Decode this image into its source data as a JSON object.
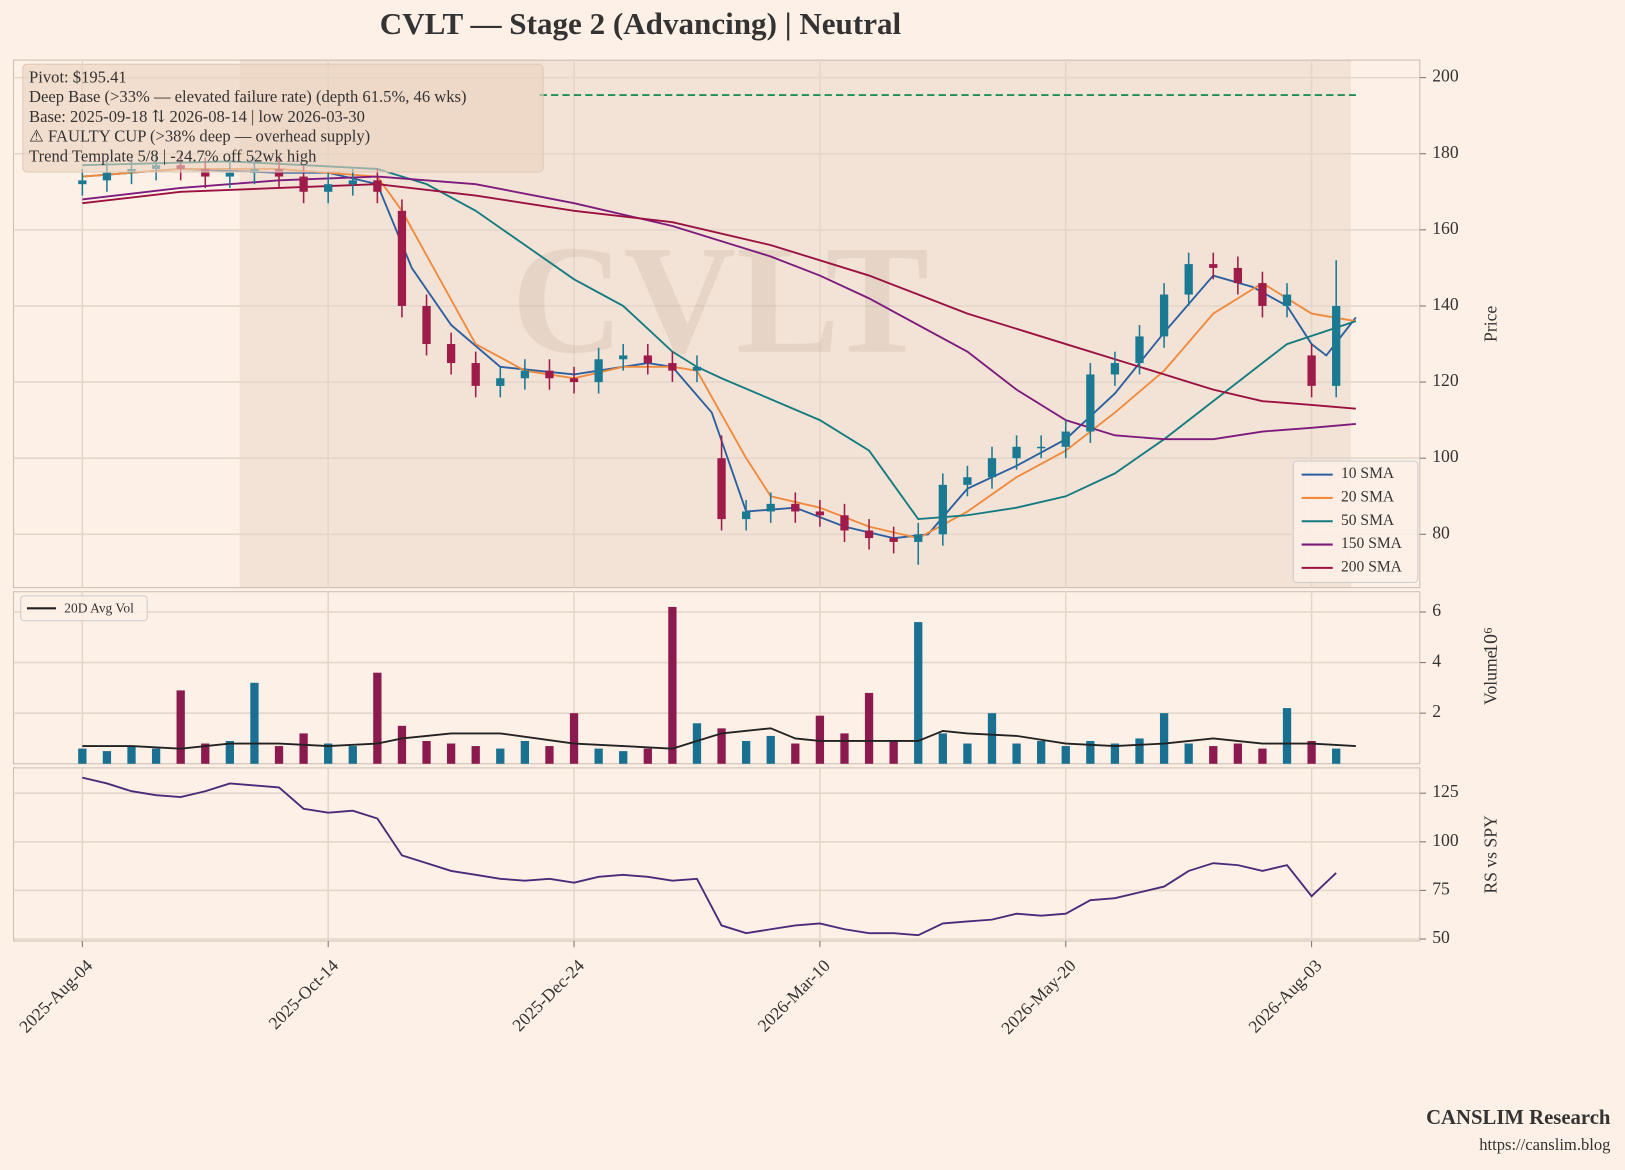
{
  "title": "CVLT  —  Stage 2 (Advancing)  |  Neutral",
  "footer": {
    "brand": "CANSLIM Research",
    "url": "https://canslim.blog"
  },
  "chart_data": [
    {
      "type": "candlestick",
      "watermark": "CVLT",
      "ylabel": "Price",
      "ylim": [
        66,
        204.6
      ],
      "yticks": [
        80,
        100,
        120,
        140,
        160,
        180,
        200
      ],
      "grid": true,
      "up_color": "#1b7a93",
      "down_color": "#9e1b4a",
      "base_span": [
        32,
        258
      ],
      "pivot": {
        "value": 195.41,
        "x": [
          93,
          259
        ],
        "color": "#1e8f5a"
      },
      "annotations": [
        "Pivot: $195.41",
        "Deep Base (>33% — elevated failure rate)  (depth 61.5%, 46 wks)",
        "Base: 2025-09-18 ⇅ 2026-08-14  |  low 2026-03-30",
        "⚠ FAULTY CUP (>38% deep — overhead supply)",
        "Trend Template 5/8  |  -24.7% off 52wk high"
      ],
      "legend": "lower right",
      "x": [
        0,
        5,
        10,
        15,
        20,
        25,
        30,
        35,
        40,
        45,
        50,
        55,
        60,
        65,
        70,
        75,
        80,
        85,
        90,
        95,
        100,
        105,
        110,
        115,
        120,
        125,
        130,
        135,
        140,
        145,
        150,
        155,
        160,
        165,
        170,
        175,
        180,
        185,
        190,
        195,
        200,
        205,
        210,
        215,
        220,
        225,
        230,
        235,
        240,
        245,
        250,
        255
      ],
      "open": [
        172,
        173,
        175,
        176,
        177,
        176,
        174,
        175,
        176,
        174,
        170,
        172,
        173,
        165,
        140,
        130,
        125,
        119,
        121,
        123,
        121,
        120,
        126,
        127,
        125,
        123,
        100,
        84,
        86,
        88,
        86,
        85,
        81,
        79,
        78,
        80,
        93,
        95,
        100,
        103,
        103,
        107,
        122,
        125,
        132,
        143,
        151,
        150,
        146,
        140,
        127,
        119
      ],
      "high": [
        176,
        178,
        179,
        180,
        180,
        179,
        178,
        179,
        179,
        177,
        175,
        176,
        176,
        168,
        143,
        133,
        128,
        124,
        126,
        126,
        124,
        129,
        130,
        130,
        128,
        127,
        106,
        89,
        91,
        91,
        89,
        88,
        84,
        82,
        83,
        96,
        98,
        103,
        106,
        106,
        110,
        125,
        128,
        135,
        146,
        154,
        154,
        153,
        149,
        146,
        130,
        152
      ],
      "low": [
        169,
        170,
        172,
        173,
        173,
        171,
        171,
        172,
        171,
        167,
        167,
        169,
        167,
        137,
        127,
        122,
        116,
        116,
        118,
        118,
        117,
        117,
        123,
        122,
        120,
        120,
        81,
        81,
        83,
        83,
        82,
        78,
        76,
        75,
        72,
        77,
        90,
        92,
        97,
        100,
        100,
        104,
        119,
        122,
        129,
        140,
        147,
        143,
        137,
        137,
        116,
        116
      ],
      "close": [
        173,
        175,
        176,
        177,
        176,
        174,
        175,
        176,
        174,
        170,
        172,
        173,
        170,
        140,
        130,
        125,
        119,
        121,
        123,
        121,
        120,
        126,
        127,
        125,
        123,
        124,
        84,
        86,
        88,
        86,
        85,
        81,
        79,
        78,
        80,
        93,
        95,
        100,
        103,
        103,
        107,
        122,
        125,
        132,
        143,
        151,
        150,
        146,
        140,
        143,
        119,
        140
      ],
      "series": [
        {
          "name": "10 SMA",
          "color": "#2b5fa0",
          "x": [
            0,
            20,
            40,
            50,
            60,
            67,
            75,
            85,
            100,
            115,
            120,
            128,
            135,
            145,
            155,
            165,
            172,
            180,
            190,
            200,
            210,
            220,
            230,
            238,
            245,
            250,
            253,
            259
          ],
          "values": [
            174,
            176,
            175,
            175,
            172,
            150,
            135,
            124,
            122,
            125,
            124,
            112,
            86,
            87,
            82,
            79,
            80,
            92,
            98,
            105,
            117,
            133,
            148,
            145,
            140,
            130,
            127,
            137
          ]
        },
        {
          "name": "20 SMA",
          "color": "#f08a3c",
          "x": [
            0,
            20,
            40,
            60,
            65,
            80,
            90,
            100,
            110,
            120,
            125,
            135,
            140,
            150,
            160,
            170,
            180,
            190,
            200,
            210,
            220,
            230,
            240,
            250,
            259
          ],
          "values": [
            174,
            176,
            176,
            174,
            165,
            130,
            123,
            121,
            124,
            124,
            123,
            100,
            90,
            87,
            82,
            79,
            86,
            95,
            102,
            112,
            123,
            138,
            146,
            138,
            136
          ]
        },
        {
          "name": "50 SMA",
          "color": "#137b80",
          "x": [
            0,
            30,
            60,
            70,
            80,
            100,
            110,
            120,
            125,
            130,
            150,
            160,
            170,
            180,
            190,
            200,
            210,
            220,
            230,
            240,
            245,
            259
          ],
          "values": [
            177,
            178,
            176,
            172,
            165,
            147,
            140,
            128,
            124,
            121,
            110,
            102,
            84,
            85,
            87,
            90,
            96,
            105,
            115,
            125,
            130,
            136
          ]
        },
        {
          "name": "150 SMA",
          "color": "#7d1a7d",
          "x": [
            0,
            20,
            40,
            60,
            80,
            100,
            120,
            140,
            150,
            160,
            180,
            190,
            200,
            210,
            220,
            230,
            240,
            250,
            259
          ],
          "values": [
            168,
            171,
            173,
            174,
            172,
            167,
            161,
            153,
            148,
            142,
            128,
            118,
            110,
            106,
            105,
            105,
            107,
            108,
            109
          ]
        },
        {
          "name": "200 SMA",
          "color": "#9a1040",
          "x": [
            0,
            20,
            40,
            60,
            80,
            100,
            120,
            140,
            160,
            170,
            180,
            200,
            220,
            230,
            240,
            250,
            259
          ],
          "values": [
            167,
            170,
            171,
            172,
            169,
            165,
            162,
            156,
            148,
            143,
            138,
            130,
            122,
            118,
            115,
            114,
            113
          ]
        }
      ]
    },
    {
      "type": "bar",
      "ylabel": "Volume",
      "scale_label": "10⁶",
      "ylim": [
        0,
        6.8
      ],
      "yticks": [
        2,
        4,
        6
      ],
      "grid": true,
      "legend": "upper left",
      "up_color": "#1a7090",
      "down_color": "#8b1a4e",
      "x": [
        0,
        5,
        10,
        15,
        20,
        25,
        30,
        35,
        40,
        45,
        50,
        55,
        60,
        65,
        70,
        75,
        80,
        85,
        90,
        95,
        100,
        105,
        110,
        115,
        120,
        125,
        130,
        135,
        140,
        145,
        150,
        155,
        160,
        165,
        170,
        175,
        180,
        185,
        190,
        195,
        200,
        205,
        210,
        215,
        220,
        225,
        230,
        235,
        240,
        245,
        250,
        255
      ],
      "values": [
        0.6,
        0.5,
        0.7,
        0.6,
        2.9,
        0.8,
        0.9,
        3.2,
        0.7,
        1.2,
        0.8,
        0.7,
        3.6,
        1.5,
        0.9,
        0.8,
        0.7,
        0.6,
        0.9,
        0.7,
        2.0,
        0.6,
        0.5,
        0.6,
        6.2,
        1.6,
        1.4,
        0.9,
        1.1,
        0.8,
        1.9,
        1.2,
        2.8,
        0.9,
        5.6,
        1.2,
        0.8,
        2.0,
        0.8,
        0.9,
        0.7,
        0.9,
        0.8,
        1.0,
        2.0,
        0.8,
        0.7,
        0.8,
        0.6,
        2.2,
        0.9,
        0.6
      ],
      "series": [
        {
          "name": "20D Avg Vol",
          "color": "#222222",
          "x": [
            0,
            10,
            20,
            30,
            40,
            50,
            60,
            65,
            75,
            85,
            100,
            110,
            120,
            125,
            130,
            140,
            145,
            150,
            160,
            170,
            175,
            180,
            190,
            200,
            210,
            220,
            230,
            240,
            250,
            259
          ],
          "values": [
            0.7,
            0.7,
            0.6,
            0.8,
            0.8,
            0.7,
            0.8,
            1.0,
            1.2,
            1.2,
            0.8,
            0.7,
            0.6,
            0.9,
            1.2,
            1.4,
            1.0,
            0.9,
            0.9,
            0.9,
            1.3,
            1.2,
            1.1,
            0.8,
            0.7,
            0.8,
            1.0,
            0.8,
            0.8,
            0.7
          ]
        }
      ]
    },
    {
      "type": "line",
      "ylabel": "RS vs SPY",
      "ylim": [
        49,
        138
      ],
      "yticks": [
        50,
        75,
        100,
        125
      ],
      "grid": true,
      "xlim": [
        -14,
        272
      ],
      "xticks": [
        {
          "value": 0,
          "label": "2025-Aug-04"
        },
        {
          "value": 50,
          "label": "2025-Oct-14"
        },
        {
          "value": 100,
          "label": "2025-Dec-24"
        },
        {
          "value": 150,
          "label": "2026-Mar-10"
        },
        {
          "value": 200,
          "label": "2026-May-20"
        },
        {
          "value": 250,
          "label": "2026-Aug-03"
        }
      ],
      "series": [
        {
          "name": "RS vs SPY",
          "color": "#4b2a7a",
          "x": [
            0,
            5,
            10,
            15,
            20,
            25,
            30,
            35,
            40,
            45,
            50,
            55,
            60,
            65,
            70,
            75,
            80,
            85,
            90,
            95,
            100,
            105,
            110,
            115,
            120,
            125,
            130,
            135,
            140,
            145,
            150,
            155,
            160,
            165,
            170,
            175,
            180,
            185,
            190,
            195,
            200,
            205,
            210,
            215,
            220,
            225,
            230,
            235,
            240,
            245,
            250,
            255
          ],
          "values": [
            133,
            130,
            126,
            124,
            123,
            126,
            130,
            129,
            128,
            117,
            115,
            116,
            112,
            93,
            89,
            85,
            83,
            81,
            80,
            81,
            79,
            82,
            83,
            82,
            80,
            81,
            57,
            53,
            55,
            57,
            58,
            55,
            53,
            53,
            52,
            58,
            59,
            60,
            63,
            62,
            63,
            70,
            71,
            74,
            77,
            85,
            89,
            88,
            85,
            88,
            72,
            84
          ]
        }
      ]
    }
  ]
}
